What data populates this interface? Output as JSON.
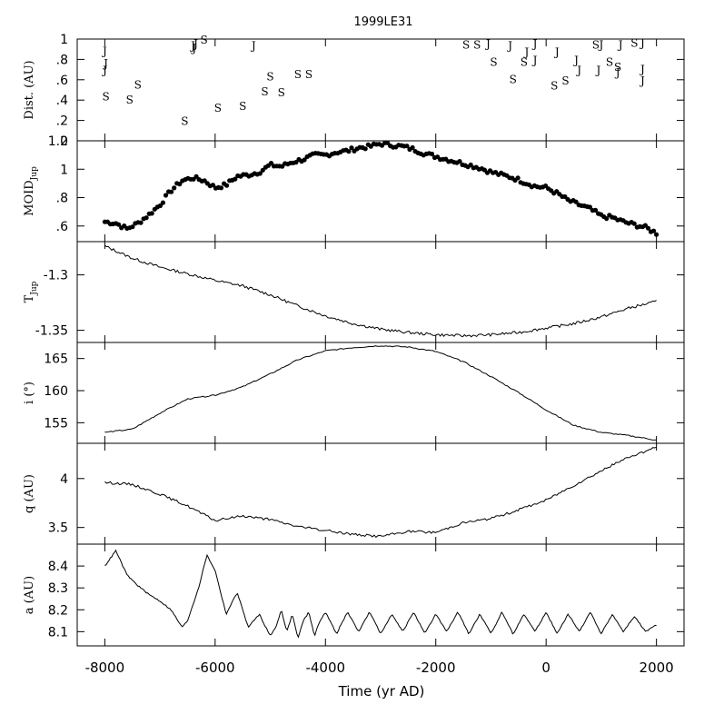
{
  "chart_data": {
    "type": "line",
    "title": "1999LE31",
    "xlabel": "Time (yr AD)",
    "xlim": [
      -8500,
      2500
    ],
    "xticks": [
      -8000,
      -6000,
      -4000,
      -2000,
      0,
      2000
    ],
    "panels": [
      {
        "id": "dist",
        "ylabel": "Dist. (AU)",
        "ylim": [
          0,
          1
        ],
        "yticks": [
          0,
          0.2,
          0.4,
          0.6,
          0.8,
          1
        ],
        "style": "markers",
        "markers": [
          {
            "t": -8000,
            "v": 0.89,
            "s": "J"
          },
          {
            "t": -7980,
            "v": 0.77,
            "s": "J"
          },
          {
            "t": -8000,
            "v": 0.7,
            "s": "J"
          },
          {
            "t": -7980,
            "v": 0.44,
            "s": "S"
          },
          {
            "t": -7550,
            "v": 0.41,
            "s": "S"
          },
          {
            "t": -7400,
            "v": 0.56,
            "s": "S"
          },
          {
            "t": -6550,
            "v": 0.2,
            "s": "S"
          },
          {
            "t": -6400,
            "v": 0.94,
            "s": "J"
          },
          {
            "t": -6350,
            "v": 0.96,
            "s": "J"
          },
          {
            "t": -6380,
            "v": 0.92,
            "s": "J"
          },
          {
            "t": -6200,
            "v": 1.0,
            "s": "S"
          },
          {
            "t": -5950,
            "v": 0.33,
            "s": "S"
          },
          {
            "t": -5500,
            "v": 0.35,
            "s": "S"
          },
          {
            "t": -5300,
            "v": 0.94,
            "s": "J"
          },
          {
            "t": -5100,
            "v": 0.49,
            "s": "S"
          },
          {
            "t": -5000,
            "v": 0.64,
            "s": "S"
          },
          {
            "t": -4800,
            "v": 0.48,
            "s": "S"
          },
          {
            "t": -4500,
            "v": 0.66,
            "s": "S"
          },
          {
            "t": -4300,
            "v": 0.66,
            "s": "S"
          },
          {
            "t": -1450,
            "v": 0.95,
            "s": "S"
          },
          {
            "t": -1250,
            "v": 0.95,
            "s": "S"
          },
          {
            "t": -1050,
            "v": 0.96,
            "s": "J"
          },
          {
            "t": -950,
            "v": 0.78,
            "s": "S"
          },
          {
            "t": -650,
            "v": 0.94,
            "s": "J"
          },
          {
            "t": -600,
            "v": 0.61,
            "s": "S"
          },
          {
            "t": -400,
            "v": 0.78,
            "s": "S"
          },
          {
            "t": -350,
            "v": 0.88,
            "s": "J"
          },
          {
            "t": -200,
            "v": 0.8,
            "s": "J"
          },
          {
            "t": -200,
            "v": 0.96,
            "s": "J"
          },
          {
            "t": 200,
            "v": 0.88,
            "s": "J"
          },
          {
            "t": 150,
            "v": 0.55,
            "s": "S"
          },
          {
            "t": 350,
            "v": 0.6,
            "s": "S"
          },
          {
            "t": 550,
            "v": 0.8,
            "s": "J"
          },
          {
            "t": 600,
            "v": 0.7,
            "s": "J"
          },
          {
            "t": 900,
            "v": 0.95,
            "s": "S"
          },
          {
            "t": 1000,
            "v": 0.95,
            "s": "J"
          },
          {
            "t": 950,
            "v": 0.7,
            "s": "J"
          },
          {
            "t": 1150,
            "v": 0.78,
            "s": "S"
          },
          {
            "t": 1300,
            "v": 0.73,
            "s": "S"
          },
          {
            "t": 1300,
            "v": 0.68,
            "s": "J"
          },
          {
            "t": 1350,
            "v": 0.95,
            "s": "J"
          },
          {
            "t": 1600,
            "v": 0.97,
            "s": "S"
          },
          {
            "t": 1750,
            "v": 0.97,
            "s": "J"
          },
          {
            "t": 1750,
            "v": 0.6,
            "s": "J"
          },
          {
            "t": 1750,
            "v": 0.71,
            "s": "J"
          }
        ]
      },
      {
        "id": "moid",
        "ylabel": "MOID",
        "ylabel_sub": "Jup",
        "ylim": [
          0.49,
          1.2
        ],
        "yticks": [
          0.6,
          0.8,
          1,
          1.2
        ],
        "style": "dots",
        "x": [
          -8000,
          -7800,
          -7600,
          -7400,
          -7200,
          -7000,
          -6800,
          -6600,
          -6400,
          -6200,
          -6000,
          -5800,
          -5600,
          -5400,
          -5200,
          -5000,
          -4800,
          -4600,
          -4400,
          -4200,
          -4000,
          -3800,
          -3600,
          -3400,
          -3200,
          -3000,
          -2800,
          -2600,
          -2400,
          -2200,
          -2000,
          -1800,
          -1600,
          -1400,
          -1200,
          -1000,
          -800,
          -600,
          -400,
          -200,
          0,
          200,
          400,
          600,
          800,
          1000,
          1200,
          1400,
          1600,
          1800,
          2000
        ],
        "y": [
          0.63,
          0.62,
          0.58,
          0.62,
          0.68,
          0.75,
          0.85,
          0.92,
          0.94,
          0.92,
          0.87,
          0.89,
          0.95,
          0.96,
          0.98,
          1.03,
          1.02,
          1.05,
          1.07,
          1.1,
          1.1,
          1.12,
          1.13,
          1.15,
          1.16,
          1.18,
          1.17,
          1.16,
          1.14,
          1.11,
          1.09,
          1.07,
          1.05,
          1.03,
          1.01,
          0.98,
          0.96,
          0.94,
          0.91,
          0.88,
          0.87,
          0.83,
          0.78,
          0.75,
          0.72,
          0.67,
          0.66,
          0.63,
          0.61,
          0.59,
          0.55
        ]
      },
      {
        "id": "tjup",
        "ylabel": "T",
        "ylabel_sub": "Jup",
        "ylim": [
          -1.361,
          -1.27
        ],
        "yticks": [
          -1.35,
          -1.3
        ],
        "style": "line",
        "x": [
          -8000,
          -7500,
          -7000,
          -6500,
          -6000,
          -5500,
          -5000,
          -4500,
          -4000,
          -3500,
          -3000,
          -2500,
          -2000,
          -1500,
          -1000,
          -500,
          0,
          500,
          1000,
          1500,
          2000
        ],
        "y": [
          -1.274,
          -1.285,
          -1.293,
          -1.299,
          -1.305,
          -1.31,
          -1.318,
          -1.328,
          -1.337,
          -1.344,
          -1.349,
          -1.352,
          -1.354,
          -1.355,
          -1.354,
          -1.352,
          -1.348,
          -1.344,
          -1.338,
          -1.33,
          -1.324
        ]
      },
      {
        "id": "incl",
        "ylabel": "i (°)",
        "ylim": [
          151.8,
          167.5
        ],
        "yticks": [
          155,
          160,
          165
        ],
        "style": "line",
        "x": [
          -8000,
          -7500,
          -7000,
          -6500,
          -6000,
          -5500,
          -5000,
          -4500,
          -4000,
          -3500,
          -3000,
          -2500,
          -2000,
          -1500,
          -1000,
          -500,
          0,
          500,
          1000,
          1500,
          2000
        ],
        "y": [
          153.5,
          154.0,
          156.5,
          158.7,
          159.3,
          160.6,
          162.6,
          164.8,
          166.2,
          166.7,
          167.0,
          166.8,
          166.1,
          164.5,
          162.2,
          159.7,
          157.0,
          154.6,
          153.5,
          153.0,
          152.3
        ]
      },
      {
        "id": "q",
        "ylabel": "q (AU)",
        "ylim": [
          3.33,
          4.36
        ],
        "yticks": [
          3.5,
          4
        ],
        "style": "line",
        "x": [
          -8000,
          -7500,
          -7000,
          -6500,
          -6000,
          -5500,
          -5000,
          -4500,
          -4000,
          -3500,
          -3000,
          -2500,
          -2000,
          -1500,
          -1000,
          -500,
          0,
          500,
          1000,
          1500,
          2000
        ],
        "y": [
          3.96,
          3.94,
          3.84,
          3.72,
          3.57,
          3.62,
          3.58,
          3.51,
          3.47,
          3.43,
          3.41,
          3.46,
          3.45,
          3.55,
          3.59,
          3.68,
          3.78,
          3.93,
          4.08,
          4.22,
          4.32
        ]
      },
      {
        "id": "a",
        "ylabel": "a (AU)",
        "ylim": [
          8.035,
          8.5
        ],
        "yticks": [
          8.1,
          8.2,
          8.3,
          8.4
        ],
        "style": "line",
        "x": [
          -8000,
          -7800,
          -7600,
          -7400,
          -7200,
          -7000,
          -6800,
          -6600,
          -6500,
          -6300,
          -6150,
          -6000,
          -5800,
          -5600,
          -5400,
          -5200,
          -5000,
          -4900,
          -4800,
          -4700,
          -4600,
          -4500,
          -4400,
          -4300,
          -4200,
          -4100,
          -4000,
          -3800,
          -3600,
          -3400,
          -3200,
          -3000,
          -2800,
          -2600,
          -2400,
          -2200,
          -2000,
          -1800,
          -1600,
          -1400,
          -1200,
          -1000,
          -800,
          -600,
          -400,
          -200,
          0,
          200,
          400,
          600,
          800,
          1000,
          1200,
          1400,
          1600,
          1800,
          2000
        ],
        "y": [
          8.4,
          8.47,
          8.36,
          8.31,
          8.27,
          8.24,
          8.2,
          8.12,
          8.15,
          8.3,
          8.45,
          8.38,
          8.18,
          8.28,
          8.12,
          8.18,
          8.08,
          8.12,
          8.2,
          8.1,
          8.18,
          8.07,
          8.15,
          8.19,
          8.08,
          8.15,
          8.19,
          8.09,
          8.19,
          8.1,
          8.19,
          8.09,
          8.18,
          8.1,
          8.19,
          8.09,
          8.18,
          8.1,
          8.19,
          8.09,
          8.18,
          8.09,
          8.19,
          8.09,
          8.18,
          8.1,
          8.19,
          8.09,
          8.18,
          8.1,
          8.19,
          8.09,
          8.18,
          8.1,
          8.17,
          8.1,
          8.13
        ]
      }
    ]
  }
}
